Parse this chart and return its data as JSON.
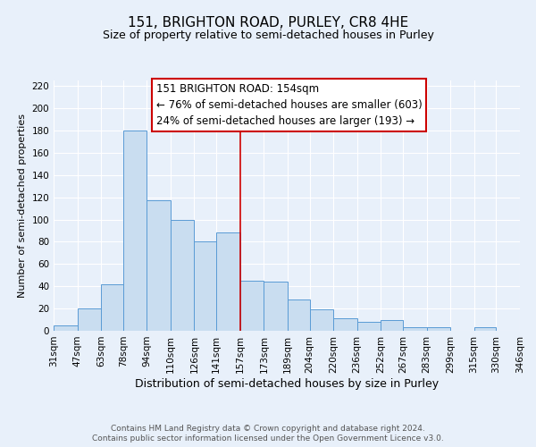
{
  "title": "151, BRIGHTON ROAD, PURLEY, CR8 4HE",
  "subtitle": "Size of property relative to semi-detached houses in Purley",
  "xlabel": "Distribution of semi-detached houses by size in Purley",
  "ylabel": "Number of semi-detached properties",
  "bins": [
    31,
    47,
    63,
    78,
    94,
    110,
    126,
    141,
    157,
    173,
    189,
    204,
    220,
    236,
    252,
    267,
    283,
    299,
    315,
    330,
    346
  ],
  "counts": [
    5,
    20,
    42,
    180,
    117,
    100,
    80,
    88,
    45,
    44,
    28,
    19,
    11,
    8,
    10,
    3,
    3,
    0,
    3,
    0
  ],
  "bar_facecolor": "#c9ddf0",
  "bar_edgecolor": "#5a9bd5",
  "vline_x": 157,
  "vline_color": "#cc0000",
  "annotation_title": "151 BRIGHTON ROAD: 154sqm",
  "annotation_line1": "← 76% of semi-detached houses are smaller (603)",
  "annotation_line2": "24% of semi-detached houses are larger (193) →",
  "annotation_facecolor": "#ffffff",
  "annotation_edgecolor": "#cc0000",
  "ylim": [
    0,
    225
  ],
  "xlim": [
    31,
    346
  ],
  "background_color": "#e8f0fa",
  "grid_color": "#ffffff",
  "yticks": [
    0,
    20,
    40,
    60,
    80,
    100,
    120,
    140,
    160,
    180,
    200,
    220
  ],
  "tick_labels": [
    "31sqm",
    "47sqm",
    "63sqm",
    "78sqm",
    "94sqm",
    "110sqm",
    "126sqm",
    "141sqm",
    "157sqm",
    "173sqm",
    "189sqm",
    "204sqm",
    "220sqm",
    "236sqm",
    "252sqm",
    "267sqm",
    "283sqm",
    "299sqm",
    "315sqm",
    "330sqm",
    "346sqm"
  ],
  "footer1": "Contains HM Land Registry data © Crown copyright and database right 2024.",
  "footer2": "Contains public sector information licensed under the Open Government Licence v3.0.",
  "title_fontsize": 11,
  "subtitle_fontsize": 9,
  "xlabel_fontsize": 9,
  "ylabel_fontsize": 8,
  "tick_fontsize": 7.5,
  "annotation_fontsize": 8.5,
  "footer_fontsize": 6.5
}
